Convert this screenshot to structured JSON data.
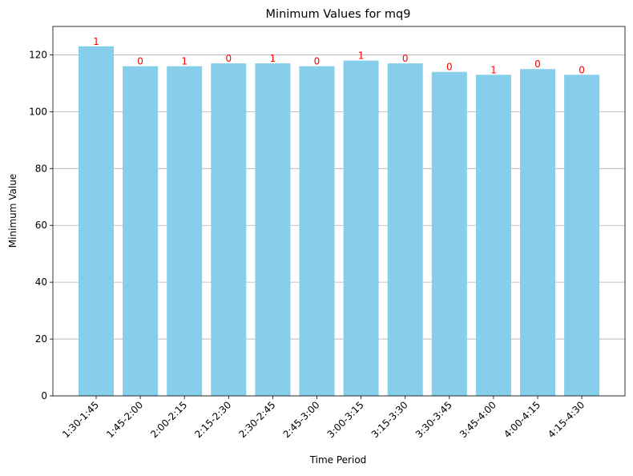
{
  "chart_data": {
    "type": "bar",
    "title": "Minimum Values for mq9",
    "xlabel": "Time Period",
    "ylabel": "Minimum Value",
    "ylim": [
      0,
      130
    ],
    "yticks": [
      0,
      20,
      40,
      60,
      80,
      100,
      120
    ],
    "grid": "y-axis",
    "categories": [
      "1:30-1:45",
      "1:45-2:00",
      "2:00-2:15",
      "2:15-2:30",
      "2:30-2:45",
      "2:45-3:00",
      "3:00-3:15",
      "3:15-3:30",
      "3:30-3:45",
      "3:45-4:00",
      "4:00-4:15",
      "4:15-4:30"
    ],
    "values": [
      123,
      116,
      116,
      117,
      117,
      116,
      118,
      117,
      114,
      113,
      115,
      113
    ],
    "annotations": [
      "1",
      "0",
      "1",
      "0",
      "1",
      "0",
      "1",
      "0",
      "0",
      "1",
      "0",
      "0"
    ],
    "colors": {
      "bar": "#87ceeb",
      "annotation": "#ff0000",
      "grid": "#b0b0b0",
      "axis": "#000000"
    }
  }
}
